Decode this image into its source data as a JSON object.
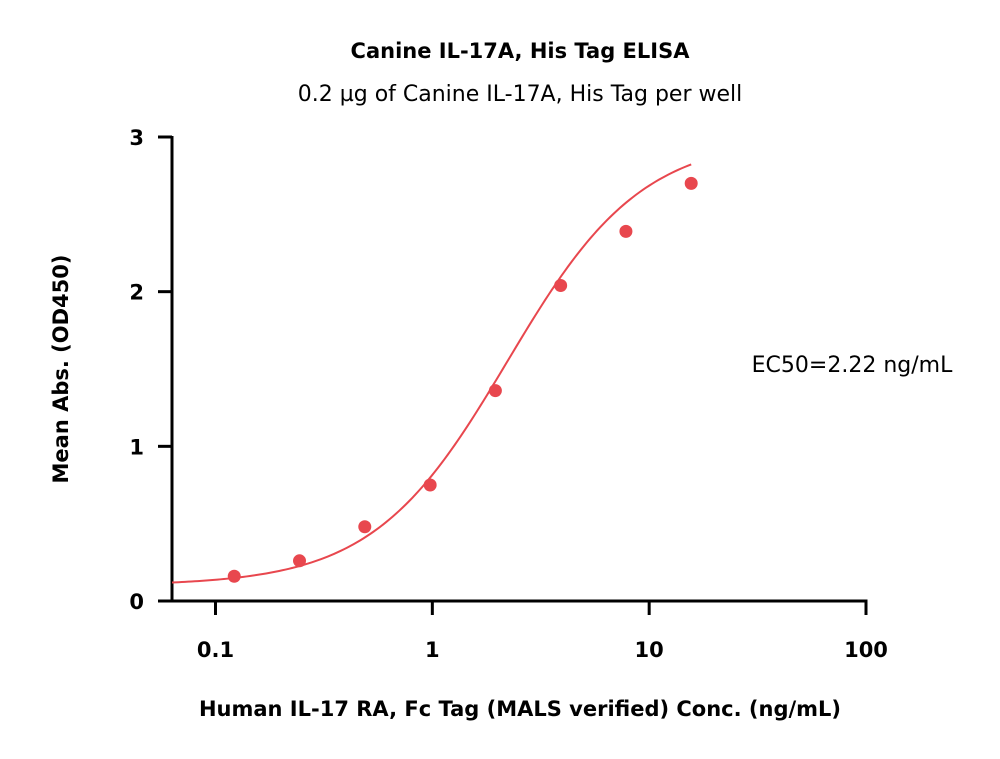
{
  "chart_data": {
    "type": "scatter",
    "title": "Canine IL-17A, His Tag ELISA",
    "subtitle": "0.2 µg of Canine IL-17A, His Tag per well",
    "xlabel": "Human IL-17 RA, Fc Tag (MALS verified) Conc. (ng/mL)",
    "ylabel": "Mean Abs. (OD450)",
    "xscale": "log",
    "xlim": [
      0.063,
      100
    ],
    "ylim": [
      0,
      3
    ],
    "xticks": [
      0.1,
      1,
      10,
      100
    ],
    "xtick_labels": [
      "0.1",
      "1",
      "10",
      "100"
    ],
    "yticks": [
      0,
      1,
      2,
      3
    ],
    "ytick_labels": [
      "0",
      "1",
      "2",
      "3"
    ],
    "grid": false,
    "color": "#e8474e",
    "series": [
      {
        "x": [
          0.122,
          0.244,
          0.488,
          0.977,
          1.953,
          3.906,
          7.813,
          15.625
        ],
        "y": [
          0.16,
          0.26,
          0.48,
          0.75,
          1.36,
          2.04,
          2.39,
          2.7
        ]
      }
    ],
    "fit": {
      "type": "4PL",
      "bottom": 0.1,
      "top": 3.0,
      "ec50": 2.22,
      "hill": 1.4,
      "x_range": [
        0.063,
        15.625
      ]
    },
    "annotation": "EC50=2.22 ng/mL"
  }
}
